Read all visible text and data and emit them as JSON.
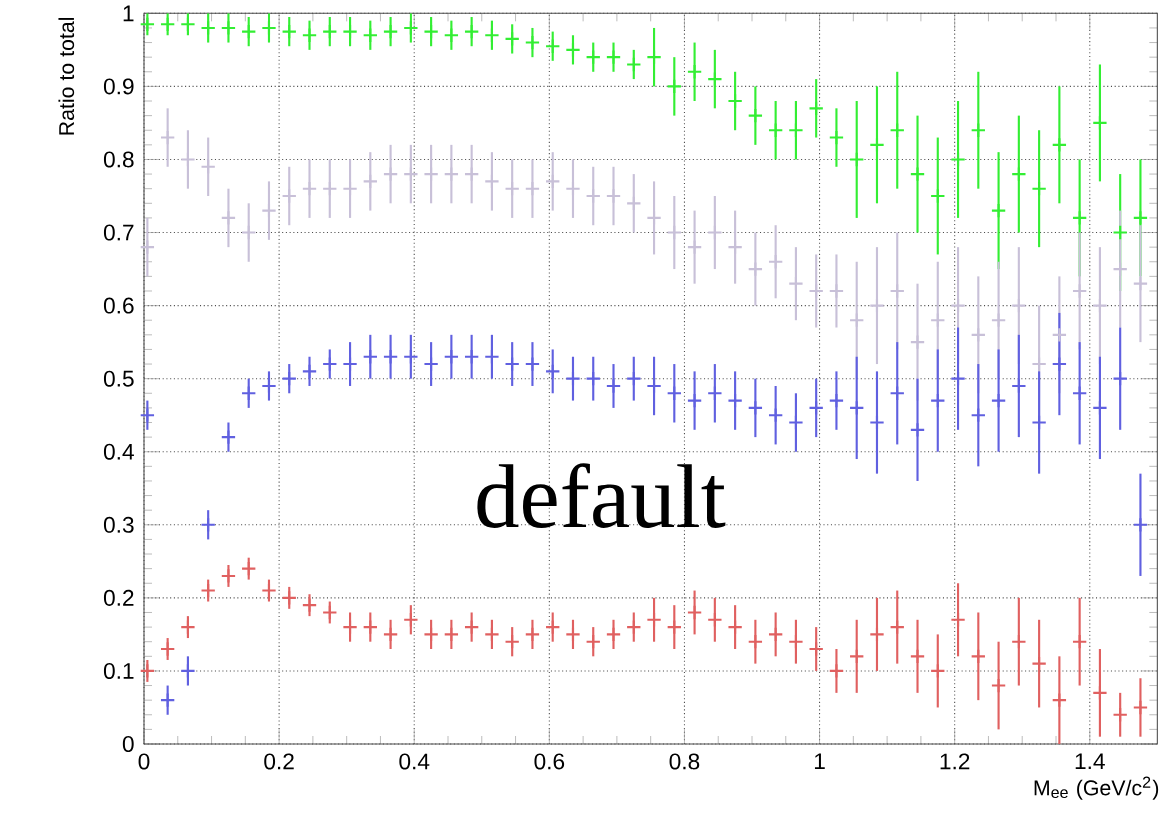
{
  "chart_data": {
    "type": "scatter",
    "xlabel": "M$_{ee}$ (GeV/c$^{2}$)",
    "ylabel": "Ratio to total",
    "annotations": [
      "default"
    ],
    "x": [
      0.005,
      0.035,
      0.065,
      0.095,
      0.125,
      0.155,
      0.185,
      0.215,
      0.245,
      0.275,
      0.305,
      0.335,
      0.365,
      0.395,
      0.425,
      0.455,
      0.485,
      0.515,
      0.545,
      0.575,
      0.605,
      0.635,
      0.665,
      0.695,
      0.725,
      0.755,
      0.785,
      0.815,
      0.845,
      0.875,
      0.905,
      0.935,
      0.965,
      0.995,
      1.025,
      1.055,
      1.085,
      1.115,
      1.145,
      1.175,
      1.205,
      1.235,
      1.265,
      1.295,
      1.325,
      1.355,
      1.385,
      1.415,
      1.445,
      1.475
    ],
    "series": [
      {
        "color": "#33ee33",
        "values": [
          0.985,
          0.985,
          0.985,
          0.98,
          0.98,
          0.975,
          0.98,
          0.975,
          0.97,
          0.975,
          0.975,
          0.97,
          0.975,
          0.98,
          0.975,
          0.97,
          0.975,
          0.97,
          0.965,
          0.96,
          0.955,
          0.95,
          0.94,
          0.94,
          0.93,
          0.94,
          0.9,
          0.92,
          0.91,
          0.88,
          0.86,
          0.84,
          0.84,
          0.87,
          0.83,
          0.8,
          0.82,
          0.84,
          0.78,
          0.75,
          0.8,
          0.84,
          0.73,
          0.78,
          0.76,
          0.82,
          0.72,
          0.85,
          0.7,
          0.72
        ],
        "errors": [
          0.015,
          0.015,
          0.015,
          0.02,
          0.02,
          0.02,
          0.02,
          0.02,
          0.02,
          0.02,
          0.02,
          0.02,
          0.02,
          0.02,
          0.02,
          0.02,
          0.02,
          0.02,
          0.02,
          0.02,
          0.02,
          0.02,
          0.02,
          0.02,
          0.02,
          0.04,
          0.04,
          0.04,
          0.04,
          0.04,
          0.04,
          0.04,
          0.04,
          0.04,
          0.04,
          0.08,
          0.08,
          0.08,
          0.08,
          0.08,
          0.08,
          0.08,
          0.08,
          0.08,
          0.08,
          0.08,
          0.08,
          0.08,
          0.08,
          0.08
        ]
      },
      {
        "color": "#c8c0d8",
        "values": [
          0.68,
          0.83,
          0.8,
          0.79,
          0.72,
          0.7,
          0.73,
          0.75,
          0.76,
          0.76,
          0.76,
          0.77,
          0.78,
          0.78,
          0.78,
          0.78,
          0.78,
          0.77,
          0.76,
          0.76,
          0.77,
          0.76,
          0.75,
          0.75,
          0.74,
          0.72,
          0.7,
          0.68,
          0.7,
          0.68,
          0.65,
          0.66,
          0.63,
          0.62,
          0.62,
          0.58,
          0.6,
          0.62,
          0.55,
          0.58,
          0.6,
          0.56,
          0.58,
          0.6,
          0.52,
          0.56,
          0.62,
          0.6,
          0.65,
          0.63
        ],
        "errors": [
          0.04,
          0.04,
          0.04,
          0.04,
          0.04,
          0.04,
          0.04,
          0.04,
          0.04,
          0.04,
          0.04,
          0.04,
          0.04,
          0.04,
          0.04,
          0.04,
          0.04,
          0.04,
          0.04,
          0.04,
          0.04,
          0.04,
          0.04,
          0.04,
          0.04,
          0.05,
          0.05,
          0.05,
          0.05,
          0.05,
          0.05,
          0.05,
          0.05,
          0.05,
          0.05,
          0.08,
          0.08,
          0.08,
          0.08,
          0.08,
          0.08,
          0.08,
          0.08,
          0.08,
          0.08,
          0.08,
          0.08,
          0.08,
          0.08,
          0.08
        ]
      },
      {
        "color": "#6060e0",
        "values": [
          0.45,
          0.06,
          0.1,
          0.3,
          0.42,
          0.48,
          0.49,
          0.5,
          0.51,
          0.52,
          0.52,
          0.53,
          0.53,
          0.53,
          0.52,
          0.53,
          0.53,
          0.53,
          0.52,
          0.52,
          0.51,
          0.5,
          0.5,
          0.49,
          0.5,
          0.49,
          0.48,
          0.47,
          0.48,
          0.47,
          0.46,
          0.45,
          0.44,
          0.46,
          0.47,
          0.46,
          0.44,
          0.48,
          0.43,
          0.47,
          0.5,
          0.45,
          0.47,
          0.49,
          0.44,
          0.52,
          0.48,
          0.46,
          0.5,
          0.3
        ],
        "errors": [
          0.02,
          0.02,
          0.02,
          0.02,
          0.02,
          0.02,
          0.02,
          0.02,
          0.02,
          0.02,
          0.03,
          0.03,
          0.03,
          0.03,
          0.03,
          0.03,
          0.03,
          0.03,
          0.03,
          0.03,
          0.03,
          0.03,
          0.03,
          0.03,
          0.03,
          0.04,
          0.04,
          0.04,
          0.04,
          0.04,
          0.04,
          0.04,
          0.04,
          0.04,
          0.04,
          0.07,
          0.07,
          0.07,
          0.07,
          0.07,
          0.07,
          0.07,
          0.07,
          0.07,
          0.07,
          0.07,
          0.07,
          0.07,
          0.07,
          0.07
        ]
      },
      {
        "color": "#e06060",
        "values": [
          0.1,
          0.13,
          0.16,
          0.21,
          0.23,
          0.24,
          0.21,
          0.2,
          0.19,
          0.18,
          0.16,
          0.16,
          0.15,
          0.17,
          0.15,
          0.15,
          0.16,
          0.15,
          0.14,
          0.15,
          0.16,
          0.15,
          0.14,
          0.15,
          0.16,
          0.17,
          0.16,
          0.18,
          0.17,
          0.16,
          0.14,
          0.15,
          0.14,
          0.13,
          0.1,
          0.12,
          0.15,
          0.16,
          0.12,
          0.1,
          0.17,
          0.12,
          0.08,
          0.14,
          0.11,
          0.06,
          0.14,
          0.07,
          0.04,
          0.05
        ],
        "errors": [
          0.015,
          0.015,
          0.015,
          0.015,
          0.015,
          0.015,
          0.015,
          0.015,
          0.015,
          0.015,
          0.02,
          0.02,
          0.02,
          0.02,
          0.02,
          0.02,
          0.02,
          0.02,
          0.02,
          0.02,
          0.02,
          0.02,
          0.02,
          0.02,
          0.02,
          0.03,
          0.03,
          0.03,
          0.03,
          0.03,
          0.03,
          0.03,
          0.03,
          0.03,
          0.03,
          0.05,
          0.05,
          0.05,
          0.05,
          0.05,
          0.05,
          0.06,
          0.06,
          0.06,
          0.06,
          0.06,
          0.06,
          0.06,
          0.03,
          0.04
        ]
      }
    ],
    "xlim": [
      0,
      1.5
    ],
    "ylim": [
      0,
      1
    ],
    "xticks": [
      0,
      0.2,
      0.4,
      0.6,
      0.8,
      1,
      1.2,
      1.4
    ],
    "yticks": [
      0,
      0.1,
      0.2,
      0.3,
      0.4,
      0.5,
      0.6,
      0.7,
      0.8,
      0.9,
      1
    ],
    "grid": true,
    "marker": "cross"
  }
}
